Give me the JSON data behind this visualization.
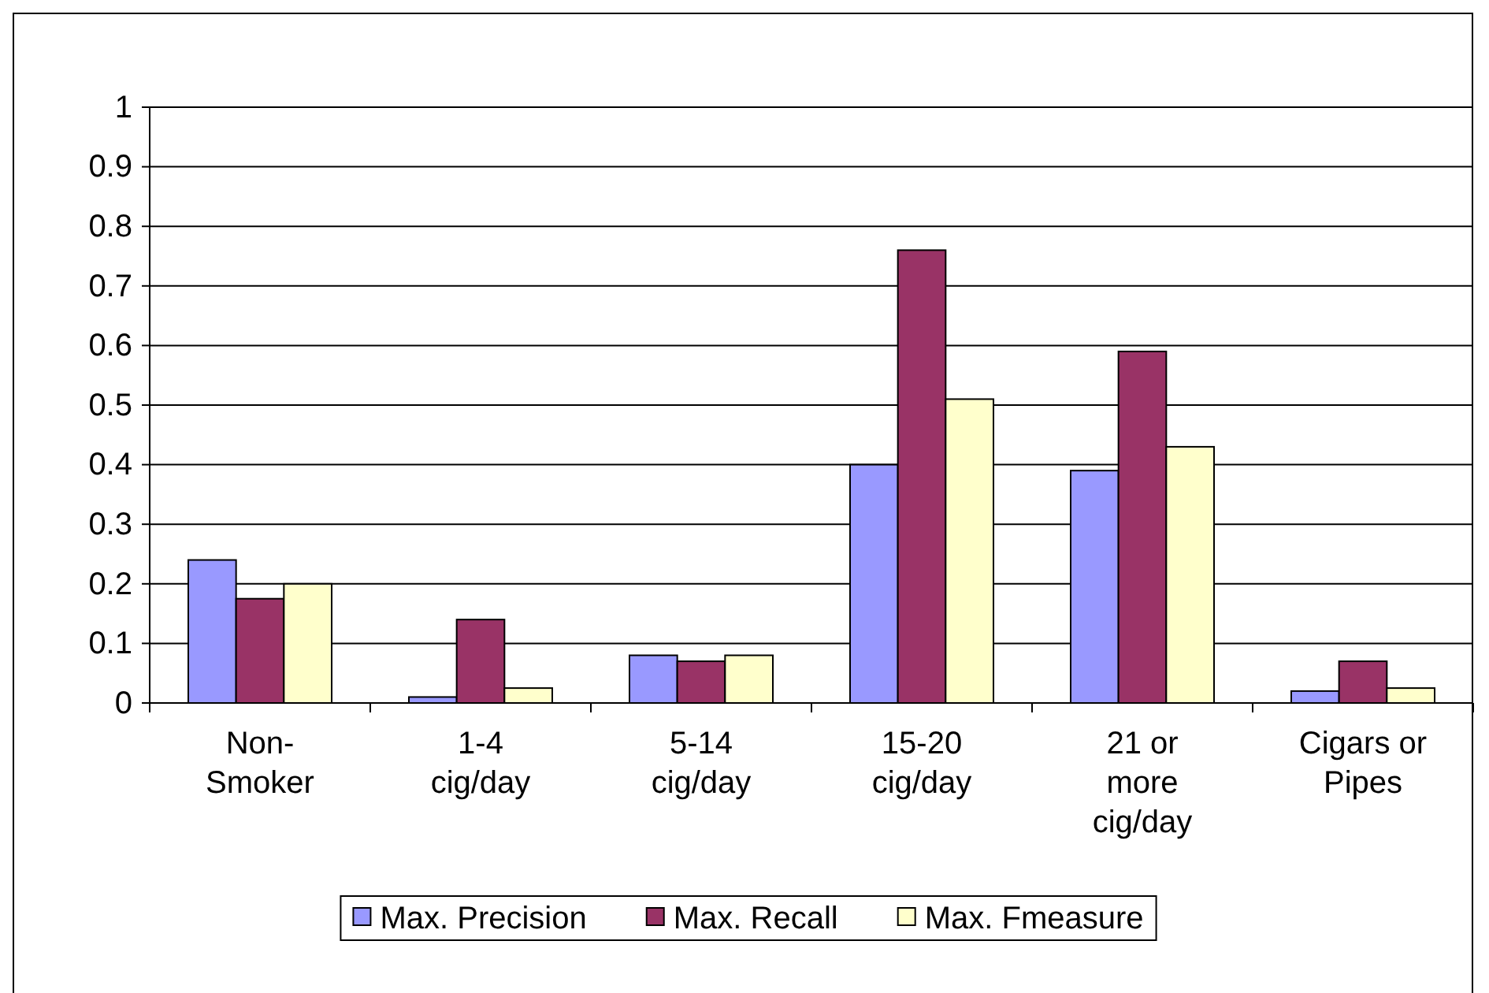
{
  "chart_data": {
    "type": "bar",
    "categories": [
      "Non-\nSmoker",
      "1-4\ncig/day",
      "5-14\ncig/day",
      "15-20\ncig/day",
      "21 or\nmore\ncig/day",
      "Cigars or\nPipes"
    ],
    "series": [
      {
        "name": "Max. Precision",
        "color": "#9999ff",
        "values": [
          0.24,
          0.01,
          0.08,
          0.4,
          0.39,
          0.02
        ]
      },
      {
        "name": "Max. Recall",
        "color": "#993366",
        "values": [
          0.175,
          0.14,
          0.07,
          0.76,
          0.59,
          0.07
        ]
      },
      {
        "name": "Max. Fmeasure",
        "color": "#ffffcc",
        "values": [
          0.2,
          0.025,
          0.08,
          0.51,
          0.43,
          0.025
        ]
      }
    ],
    "ylim": [
      0,
      1
    ],
    "yticks": [
      0,
      0.1,
      0.2,
      0.3,
      0.4,
      0.5,
      0.6,
      0.7,
      0.8,
      0.9,
      1
    ],
    "grid": "y",
    "legend": "bottom"
  }
}
